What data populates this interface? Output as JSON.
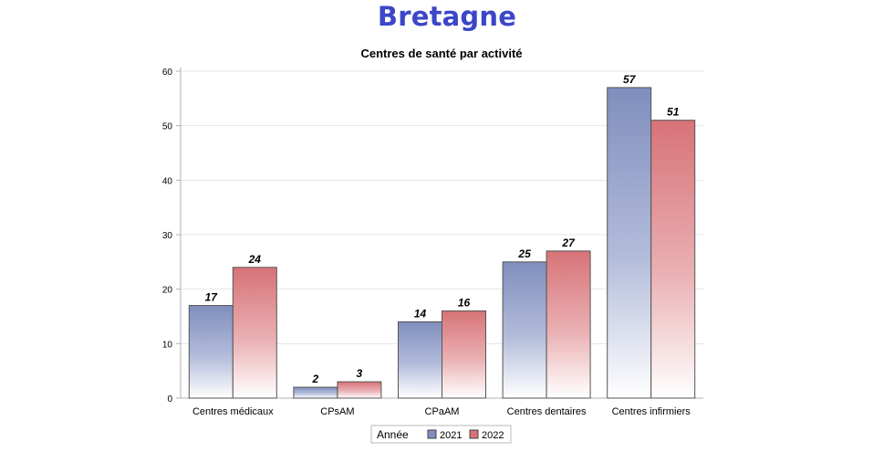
{
  "page": {
    "title": "Bretagne"
  },
  "colors": {
    "title": "#3c46c8",
    "series_2021": "#7f8ebd",
    "series_2022": "#d77378",
    "grid": "#e6e6e6",
    "axis": "#b0b0b0"
  },
  "chart_data": {
    "type": "bar",
    "title": "Centres de santé par activité",
    "xlabel": "",
    "ylabel": "",
    "categories": [
      "Centres médicaux",
      "CPsAM",
      "CPaAM",
      "Centres dentaires",
      "Centres infirmiers"
    ],
    "series": [
      {
        "name": "2021",
        "values": [
          17,
          2,
          14,
          25,
          57
        ]
      },
      {
        "name": "2022",
        "values": [
          24,
          3,
          16,
          27,
          51
        ]
      }
    ],
    "ylim": [
      0,
      60
    ],
    "yticks": [
      0,
      10,
      20,
      30,
      40,
      50,
      60
    ],
    "grid": true,
    "data_labels": true,
    "legend": {
      "title": "Année",
      "placement": "bottom-center"
    }
  }
}
